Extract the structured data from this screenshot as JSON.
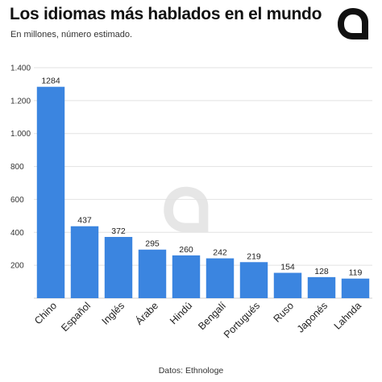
{
  "header": {
    "title": "Los idiomas más hablados en el mundo",
    "subtitle": "En millones, número estimado."
  },
  "logo": {
    "icon": "speech-bubble-logo-icon",
    "color": "#111111"
  },
  "watermark": {
    "icon": "speech-bubble-watermark-icon",
    "color": "#e6e6e6"
  },
  "footer": {
    "source": "Datos: Ethnologe"
  },
  "colors": {
    "bar": "#3b85e0",
    "grid": "#e2e2e2"
  },
  "chart_data": {
    "type": "bar",
    "title": "Los idiomas más hablados en el mundo",
    "subtitle": "En millones, número estimado.",
    "xlabel": "",
    "ylabel": "",
    "categories": [
      "Chino",
      "Español",
      "Inglés",
      "Árabe",
      "Hindú",
      "Bengalí",
      "Portugués",
      "Ruso",
      "Japonés",
      "Lahnda"
    ],
    "values": [
      1284,
      437,
      372,
      295,
      260,
      242,
      219,
      154,
      128,
      119
    ],
    "ylim": [
      0,
      1400
    ],
    "yticks": [
      200,
      400,
      600,
      800,
      1000,
      1200,
      1400
    ],
    "ytick_labels": [
      "200",
      "400",
      "600",
      "800",
      "1.000",
      "1.200",
      "1.400"
    ],
    "grid": true,
    "legend": "none",
    "data_labels": true
  }
}
